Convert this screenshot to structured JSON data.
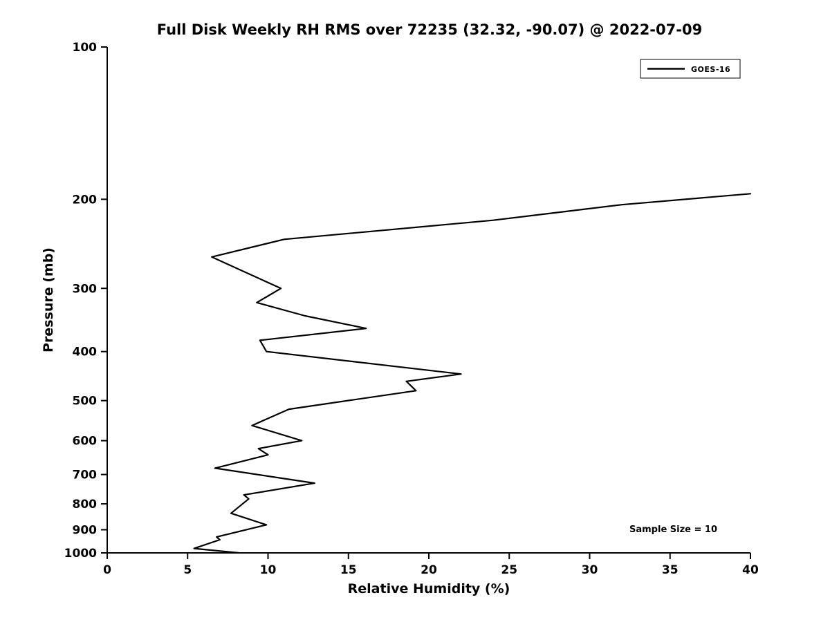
{
  "chart_data": {
    "type": "line",
    "title": "Full Disk Weekly RH RMS over 72235 (32.32, -90.07) @ 2022-07-09",
    "xlabel": "Relative Humidity (%)",
    "ylabel": "Pressure (mb)",
    "xlim": [
      0,
      40
    ],
    "ylim": [
      100,
      1000
    ],
    "y_scale": "log",
    "y_inverted": true,
    "grid": false,
    "x_ticks": [
      0,
      5,
      10,
      15,
      20,
      25,
      30,
      35,
      40
    ],
    "y_ticks": [
      100,
      200,
      300,
      400,
      500,
      600,
      700,
      800,
      900,
      1000
    ],
    "legend": {
      "position": "upper right",
      "entries": [
        {
          "label": "GOES-16",
          "color": "#000000"
        }
      ]
    },
    "annotation": "Sample Size = 10",
    "series": [
      {
        "name": "GOES-16",
        "color": "#000000",
        "pressure": [
          195,
          205,
          220,
          240,
          260,
          300,
          320,
          340,
          360,
          380,
          400,
          443,
          458,
          478,
          520,
          560,
          600,
          622,
          640,
          680,
          728,
          768,
          782,
          835,
          880,
          930,
          942,
          980,
          1000
        ],
        "rh": [
          40.0,
          32.0,
          24.0,
          11.0,
          6.5,
          10.8,
          9.3,
          12.3,
          16.1,
          9.5,
          9.9,
          22.0,
          18.6,
          19.2,
          11.3,
          9.0,
          12.1,
          9.4,
          10.0,
          6.7,
          12.9,
          8.5,
          8.8,
          7.7,
          9.9,
          6.8,
          7.0,
          5.4,
          8.2
        ]
      }
    ]
  }
}
